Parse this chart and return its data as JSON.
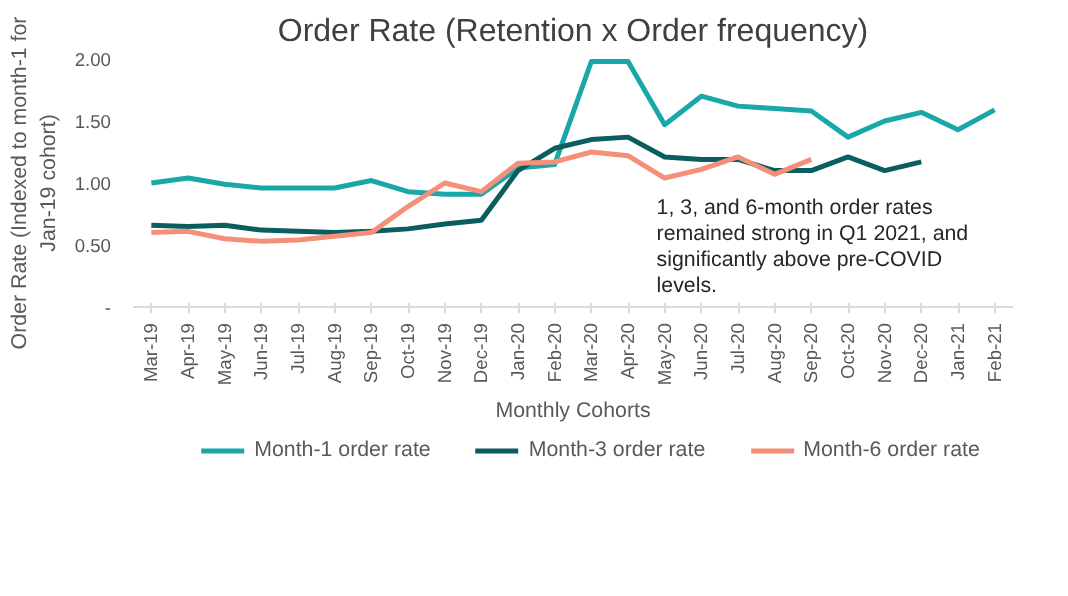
{
  "chart_data": {
    "type": "line",
    "title": "Order Rate (Retention x Order frequency)",
    "xlabel": "Monthly Cohorts",
    "ylabel": "Order Rate (Indexed to month-1 for Jan-19 cohort)",
    "categories": [
      "Mar-19",
      "Apr-19",
      "May-19",
      "Jun-19",
      "Jul-19",
      "Aug-19",
      "Sep-19",
      "Oct-19",
      "Nov-19",
      "Dec-19",
      "Jan-20",
      "Feb-20",
      "Mar-20",
      "Apr-20",
      "May-20",
      "Jun-20",
      "Jul-20",
      "Aug-20",
      "Sep-20",
      "Oct-20",
      "Nov-20",
      "Dec-20",
      "Jan-21",
      "Feb-21"
    ],
    "series": [
      {
        "name": "Month-1 order rate",
        "color": "#1aa7a9",
        "values": [
          1.0,
          1.04,
          0.99,
          0.96,
          0.96,
          0.96,
          1.02,
          0.93,
          0.91,
          0.91,
          1.12,
          1.15,
          1.98,
          1.98,
          1.47,
          1.7,
          1.62,
          1.6,
          1.58,
          1.37,
          1.5,
          1.57,
          1.43,
          1.59
        ]
      },
      {
        "name": "Month-3 order rate",
        "color": "#0b5e5e",
        "values": [
          0.66,
          0.65,
          0.66,
          0.62,
          0.61,
          0.6,
          0.61,
          0.63,
          0.67,
          0.7,
          1.1,
          1.28,
          1.35,
          1.37,
          1.21,
          1.19,
          1.19,
          1.1,
          1.1,
          1.21,
          1.1,
          1.17,
          null,
          null
        ]
      },
      {
        "name": "Month-6 order rate",
        "color": "#f4907a",
        "values": [
          0.6,
          0.61,
          0.55,
          0.53,
          0.54,
          0.57,
          0.6,
          0.81,
          1.0,
          0.93,
          1.16,
          1.17,
          1.25,
          1.22,
          1.04,
          1.11,
          1.21,
          1.07,
          1.19,
          null,
          null,
          null,
          null,
          null
        ]
      }
    ],
    "ylim": [
      0,
      2.0
    ],
    "yticks": [
      {
        "value": 0,
        "label": "-"
      },
      {
        "value": 0.5,
        "label": "0.50"
      },
      {
        "value": 1.0,
        "label": "1.00"
      },
      {
        "value": 1.5,
        "label": "1.50"
      },
      {
        "value": 2.0,
        "label": "2.00"
      }
    ],
    "annotations": [
      "1, 3, and 6-month order rates remained strong in Q1 2021, and significantly above pre-COVID levels."
    ],
    "grid": false,
    "legend": "bottom",
    "line_style": "solid",
    "marker": "none"
  }
}
